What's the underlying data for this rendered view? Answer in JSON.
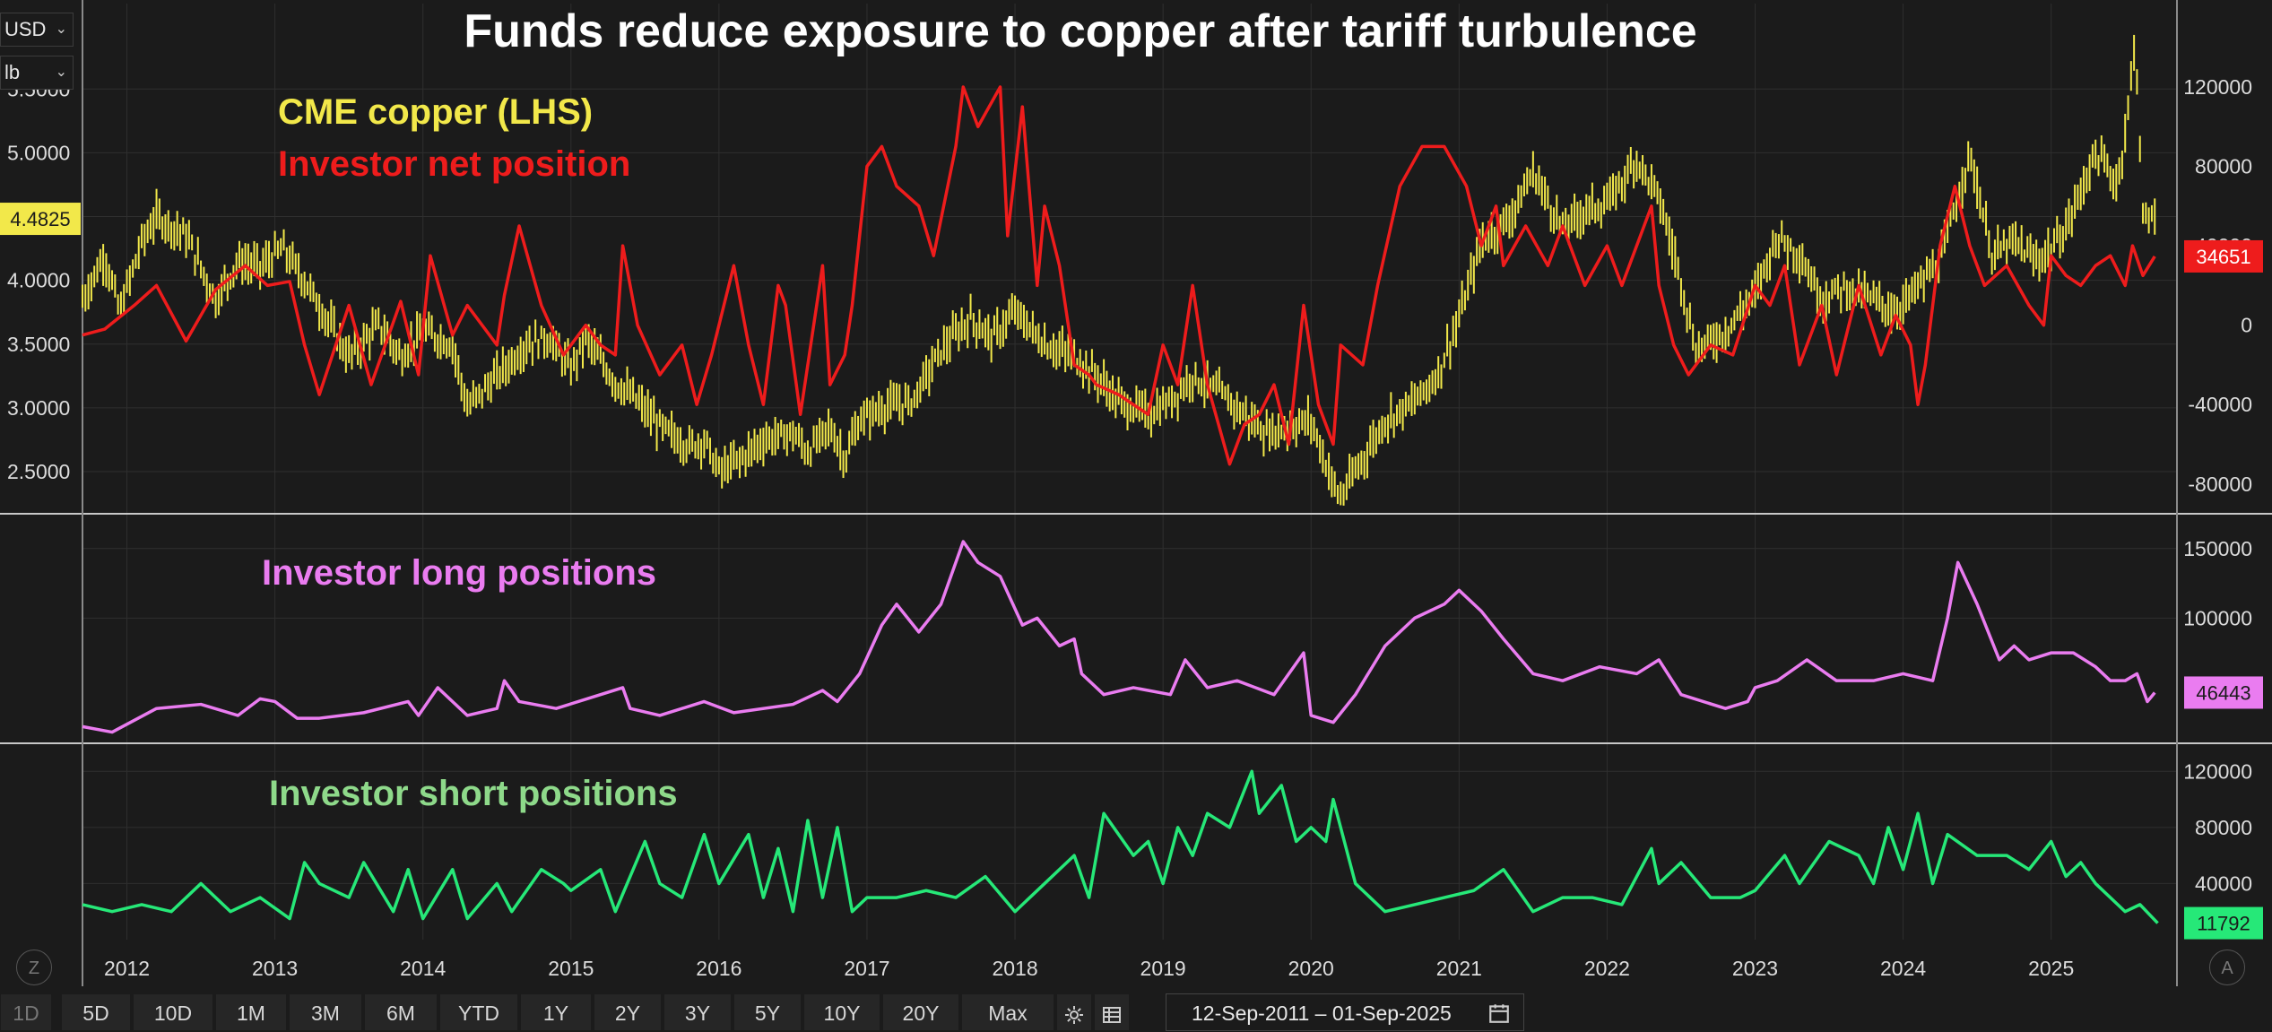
{
  "title": "Funds reduce exposure to copper after tariff turbulence",
  "controls": {
    "currency": "USD",
    "unit": "lb",
    "z_label": "Z",
    "a_label": "A"
  },
  "colors": {
    "background": "#1b1b1b",
    "copper": "#f2e84a",
    "net": "#ee1c1c",
    "long": "#ea7cf0",
    "short": "#26e878",
    "grid": "#2f2f2f",
    "separator": "#c8c8c8",
    "axis_text": "#dcdcdc"
  },
  "toolbar": {
    "buttons": [
      "1D",
      "5D",
      "10D",
      "1M",
      "3M",
      "6M",
      "YTD",
      "1Y",
      "2Y",
      "3Y",
      "5Y",
      "10Y",
      "20Y",
      "Max"
    ],
    "settings_icon": "gear-icon",
    "table_icon": "table-icon",
    "date_range": "12-Sep-2011 – 01-Sep-2025",
    "calendar_icon": "calendar-icon"
  },
  "chart_data": [
    {
      "type": "line",
      "title": "Funds reduce exposure to copper after tariff turbulence",
      "x_ticks": [
        "2012",
        "2013",
        "2014",
        "2015",
        "2016",
        "2017",
        "2018",
        "2019",
        "2020",
        "2021",
        "2022",
        "2023",
        "2024",
        "2025"
      ],
      "x_range": [
        2011.7,
        2025.85
      ],
      "series": [
        {
          "name": "CME copper (LHS)",
          "axis": "left",
          "style": "ohlc-bars",
          "x": [
            2011.7,
            2011.85,
            2011.95,
            2012.1,
            2012.2,
            2012.4,
            2012.6,
            2012.75,
            2012.9,
            2013.05,
            2013.2,
            2013.4,
            2013.5,
            2013.7,
            2013.85,
            2014.0,
            2014.2,
            2014.3,
            2014.5,
            2014.7,
            2014.85,
            2015.0,
            2015.1,
            2015.3,
            2015.45,
            2015.6,
            2015.8,
            2015.9,
            2016.0,
            2016.15,
            2016.3,
            2016.5,
            2016.6,
            2016.75,
            2016.85,
            2016.95,
            2017.1,
            2017.3,
            2017.5,
            2017.7,
            2017.85,
            2018.0,
            2018.2,
            2018.4,
            2018.55,
            2018.7,
            2018.9,
            2019.05,
            2019.2,
            2019.4,
            2019.55,
            2019.7,
            2019.85,
            2020.0,
            2020.15,
            2020.2,
            2020.35,
            2020.5,
            2020.7,
            2020.85,
            2021.0,
            2021.15,
            2021.35,
            2021.5,
            2021.7,
            2021.85,
            2022.0,
            2022.2,
            2022.35,
            2022.5,
            2022.6,
            2022.8,
            2023.0,
            2023.15,
            2023.3,
            2023.45,
            2023.6,
            2023.8,
            2023.95,
            2024.1,
            2024.25,
            2024.38,
            2024.45,
            2024.6,
            2024.75,
            2024.9,
            2025.0,
            2025.1,
            2025.2,
            2025.3,
            2025.45,
            2025.52,
            2025.57,
            2025.62,
            2025.7
          ],
          "values": [
            3.85,
            4.2,
            3.75,
            4.3,
            4.5,
            4.35,
            3.85,
            4.15,
            4.1,
            4.25,
            4.0,
            3.6,
            3.4,
            3.65,
            3.4,
            3.6,
            3.5,
            3.0,
            3.25,
            3.5,
            3.55,
            3.3,
            3.55,
            3.2,
            3.05,
            2.85,
            2.7,
            2.75,
            2.5,
            2.6,
            2.75,
            2.8,
            2.65,
            2.85,
            2.6,
            2.9,
            3.0,
            3.05,
            3.45,
            3.7,
            3.55,
            3.75,
            3.5,
            3.4,
            3.25,
            3.05,
            2.95,
            3.05,
            3.25,
            3.1,
            2.95,
            2.8,
            2.85,
            2.9,
            2.4,
            2.3,
            2.6,
            2.9,
            3.05,
            3.25,
            3.7,
            4.3,
            4.5,
            4.85,
            4.4,
            4.55,
            4.6,
            4.95,
            4.65,
            4.0,
            3.45,
            3.6,
            3.9,
            4.35,
            4.2,
            3.85,
            3.95,
            3.85,
            3.75,
            3.95,
            4.15,
            4.7,
            5.0,
            4.2,
            4.3,
            4.15,
            4.25,
            4.4,
            4.7,
            5.0,
            4.75,
            5.35,
            5.9,
            4.5,
            4.48
          ]
        },
        {
          "name": "Investor net position",
          "axis": "right",
          "x": [
            2011.7,
            2011.85,
            2012.05,
            2012.2,
            2012.4,
            2012.6,
            2012.8,
            2012.95,
            2013.1,
            2013.2,
            2013.3,
            2013.5,
            2013.65,
            2013.85,
            2013.97,
            2014.05,
            2014.2,
            2014.3,
            2014.5,
            2014.55,
            2014.65,
            2014.8,
            2014.95,
            2015.1,
            2015.2,
            2015.3,
            2015.35,
            2015.45,
            2015.6,
            2015.75,
            2015.85,
            2015.95,
            2016.1,
            2016.2,
            2016.3,
            2016.4,
            2016.45,
            2016.55,
            2016.7,
            2016.75,
            2016.85,
            2016.9,
            2017.0,
            2017.1,
            2017.2,
            2017.35,
            2017.45,
            2017.6,
            2017.65,
            2017.75,
            2017.9,
            2017.95,
            2018.05,
            2018.15,
            2018.2,
            2018.3,
            2018.4,
            2018.5,
            2018.55,
            2018.7,
            2018.9,
            2019.0,
            2019.1,
            2019.2,
            2019.3,
            2019.45,
            2019.55,
            2019.65,
            2019.75,
            2019.85,
            2019.95,
            2020.05,
            2020.15,
            2020.2,
            2020.35,
            2020.45,
            2020.6,
            2020.75,
            2020.9,
            2021.05,
            2021.15,
            2021.25,
            2021.3,
            2021.45,
            2021.6,
            2021.7,
            2021.85,
            2022.0,
            2022.1,
            2022.2,
            2022.3,
            2022.35,
            2022.45,
            2022.55,
            2022.7,
            2022.85,
            2023.0,
            2023.1,
            2023.2,
            2023.3,
            2023.45,
            2023.55,
            2023.7,
            2023.85,
            2023.95,
            2024.05,
            2024.1,
            2024.15,
            2024.25,
            2024.35,
            2024.45,
            2024.55,
            2024.7,
            2024.85,
            2024.95,
            2025.0,
            2025.1,
            2025.2,
            2025.3,
            2025.4,
            2025.5,
            2025.55,
            2025.62,
            2025.7
          ],
          "values": [
            -5000,
            -2000,
            10000,
            20000,
            -8000,
            18000,
            30000,
            20000,
            22000,
            -10000,
            -35000,
            10000,
            -30000,
            12000,
            -25000,
            35000,
            -5000,
            10000,
            -10000,
            15000,
            50000,
            10000,
            -15000,
            0,
            -10000,
            -15000,
            40000,
            0,
            -25000,
            -10000,
            -40000,
            -15000,
            30000,
            -10000,
            -40000,
            20000,
            10000,
            -45000,
            30000,
            -30000,
            -15000,
            10000,
            80000,
            90000,
            70000,
            60000,
            35000,
            90000,
            120000,
            100000,
            120000,
            45000,
            110000,
            20000,
            60000,
            30000,
            -20000,
            -25000,
            -30000,
            -35000,
            -45000,
            -10000,
            -30000,
            20000,
            -30000,
            -70000,
            -50000,
            -45000,
            -30000,
            -60000,
            10000,
            -40000,
            -60000,
            -10000,
            -20000,
            20000,
            70000,
            90000,
            90000,
            70000,
            40000,
            60000,
            30000,
            50000,
            30000,
            50000,
            20000,
            40000,
            20000,
            40000,
            60000,
            20000,
            -10000,
            -25000,
            -10000,
            -15000,
            20000,
            10000,
            30000,
            -20000,
            10000,
            -25000,
            20000,
            -15000,
            5000,
            -10000,
            -40000,
            -20000,
            40000,
            70000,
            40000,
            20000,
            30000,
            10000,
            0,
            35000,
            25000,
            20000,
            30000,
            35000,
            20000,
            40000,
            25000,
            34651
          ]
        }
      ],
      "left_axis": {
        "ticks": [
          2.5,
          3.0,
          3.5,
          4.0,
          4.5,
          5.0,
          5.5
        ],
        "tick_labels": [
          "2.5000",
          "3.0000",
          "3.5000",
          "4.0000",
          "4.5000",
          "5.0000",
          "5.5000"
        ],
        "range": [
          2.17,
          6.17
        ],
        "last_value": "4.4825"
      },
      "right_axis": {
        "ticks": [
          -80000,
          -40000,
          0,
          40000,
          80000,
          120000
        ],
        "tick_labels": [
          "-80000",
          "-40000",
          "0",
          "40000",
          "80000",
          "120000"
        ],
        "range": [
          -95000,
          162000
        ],
        "last_value": "34651"
      },
      "legend": [
        "CME copper (LHS)",
        "Investor net position"
      ]
    },
    {
      "type": "line",
      "x_range": [
        2011.7,
        2025.85
      ],
      "series": [
        {
          "name": "Investor long positions",
          "x": [
            2011.7,
            2011.9,
            2012.2,
            2012.5,
            2012.75,
            2012.9,
            2013.0,
            2013.15,
            2013.3,
            2013.6,
            2013.9,
            2013.97,
            2014.1,
            2014.3,
            2014.5,
            2014.55,
            2014.65,
            2014.9,
            2015.2,
            2015.35,
            2015.4,
            2015.6,
            2015.9,
            2016.1,
            2016.5,
            2016.7,
            2016.8,
            2016.95,
            2017.1,
            2017.2,
            2017.35,
            2017.5,
            2017.65,
            2017.75,
            2017.9,
            2018.05,
            2018.15,
            2018.3,
            2018.4,
            2018.45,
            2018.6,
            2018.8,
            2019.05,
            2019.15,
            2019.3,
            2019.5,
            2019.75,
            2019.95,
            2020.0,
            2020.15,
            2020.3,
            2020.5,
            2020.7,
            2020.9,
            2021.0,
            2021.15,
            2021.3,
            2021.5,
            2021.7,
            2021.95,
            2022.2,
            2022.35,
            2022.5,
            2022.8,
            2022.95,
            2023.0,
            2023.15,
            2023.35,
            2023.55,
            2023.8,
            2024.0,
            2024.2,
            2024.3,
            2024.37,
            2024.5,
            2024.65,
            2024.75,
            2024.85,
            2025.0,
            2025.15,
            2025.3,
            2025.4,
            2025.5,
            2025.58,
            2025.65,
            2025.7
          ],
          "values": [
            22000,
            18000,
            35000,
            38000,
            30000,
            42000,
            40000,
            28000,
            28000,
            32000,
            40000,
            30000,
            50000,
            30000,
            35000,
            55000,
            40000,
            35000,
            45000,
            50000,
            35000,
            30000,
            40000,
            32000,
            38000,
            48000,
            40000,
            60000,
            95000,
            110000,
            90000,
            110000,
            155000,
            140000,
            130000,
            95000,
            100000,
            80000,
            85000,
            60000,
            45000,
            50000,
            45000,
            70000,
            50000,
            55000,
            45000,
            75000,
            30000,
            25000,
            45000,
            80000,
            100000,
            110000,
            120000,
            105000,
            85000,
            60000,
            55000,
            65000,
            60000,
            70000,
            45000,
            35000,
            40000,
            50000,
            55000,
            70000,
            55000,
            55000,
            60000,
            55000,
            100000,
            140000,
            110000,
            70000,
            80000,
            70000,
            75000,
            75000,
            65000,
            55000,
            55000,
            60000,
            40000,
            46443
          ]
        }
      ],
      "right_axis": {
        "ticks": [
          100000,
          150000
        ],
        "tick_labels": [
          "100000",
          "150000"
        ],
        "range": [
          10000,
          175000
        ],
        "last_value": "46443"
      },
      "legend": [
        "Investor long positions"
      ]
    },
    {
      "type": "line",
      "x_range": [
        2011.7,
        2025.85
      ],
      "series": [
        {
          "name": "Investor short positions",
          "x": [
            2011.7,
            2011.9,
            2012.1,
            2012.3,
            2012.5,
            2012.7,
            2012.9,
            2013.1,
            2013.2,
            2013.3,
            2013.5,
            2013.6,
            2013.8,
            2013.9,
            2014.0,
            2014.2,
            2014.3,
            2014.5,
            2014.6,
            2014.8,
            2014.95,
            2015.0,
            2015.2,
            2015.3,
            2015.5,
            2015.6,
            2015.75,
            2015.9,
            2016.0,
            2016.2,
            2016.3,
            2016.4,
            2016.5,
            2016.6,
            2016.7,
            2016.8,
            2016.9,
            2017.0,
            2017.2,
            2017.4,
            2017.6,
            2017.8,
            2018.0,
            2018.2,
            2018.4,
            2018.5,
            2018.6,
            2018.8,
            2018.9,
            2019.0,
            2019.1,
            2019.2,
            2019.3,
            2019.45,
            2019.6,
            2019.65,
            2019.8,
            2019.9,
            2020.0,
            2020.1,
            2020.15,
            2020.3,
            2020.5,
            2020.7,
            2020.9,
            2021.1,
            2021.3,
            2021.5,
            2021.7,
            2021.9,
            2022.1,
            2022.3,
            2022.35,
            2022.5,
            2022.7,
            2022.9,
            2023.0,
            2023.2,
            2023.3,
            2023.5,
            2023.7,
            2023.8,
            2023.9,
            2024.0,
            2024.1,
            2024.2,
            2024.3,
            2024.5,
            2024.7,
            2024.85,
            2025.0,
            2025.1,
            2025.2,
            2025.3,
            2025.5,
            2025.6,
            2025.72
          ],
          "values": [
            25000,
            20000,
            25000,
            20000,
            40000,
            20000,
            30000,
            15000,
            55000,
            40000,
            30000,
            55000,
            20000,
            50000,
            15000,
            50000,
            15000,
            40000,
            20000,
            50000,
            40000,
            35000,
            50000,
            20000,
            70000,
            40000,
            30000,
            75000,
            40000,
            75000,
            30000,
            65000,
            20000,
            85000,
            30000,
            80000,
            20000,
            30000,
            30000,
            35000,
            30000,
            45000,
            20000,
            40000,
            60000,
            30000,
            90000,
            60000,
            70000,
            40000,
            80000,
            60000,
            90000,
            80000,
            120000,
            90000,
            110000,
            70000,
            80000,
            70000,
            100000,
            40000,
            20000,
            25000,
            30000,
            35000,
            50000,
            20000,
            30000,
            30000,
            25000,
            65000,
            40000,
            55000,
            30000,
            30000,
            35000,
            60000,
            40000,
            70000,
            60000,
            40000,
            80000,
            50000,
            90000,
            40000,
            75000,
            60000,
            60000,
            50000,
            70000,
            45000,
            55000,
            40000,
            20000,
            25000,
            11792
          ]
        }
      ],
      "right_axis": {
        "ticks": [
          40000,
          80000,
          120000
        ],
        "tick_labels": [
          "40000",
          "80000",
          "120000"
        ],
        "range": [
          0,
          140000
        ],
        "last_value": "11792"
      },
      "legend": [
        "Investor short positions"
      ]
    }
  ]
}
